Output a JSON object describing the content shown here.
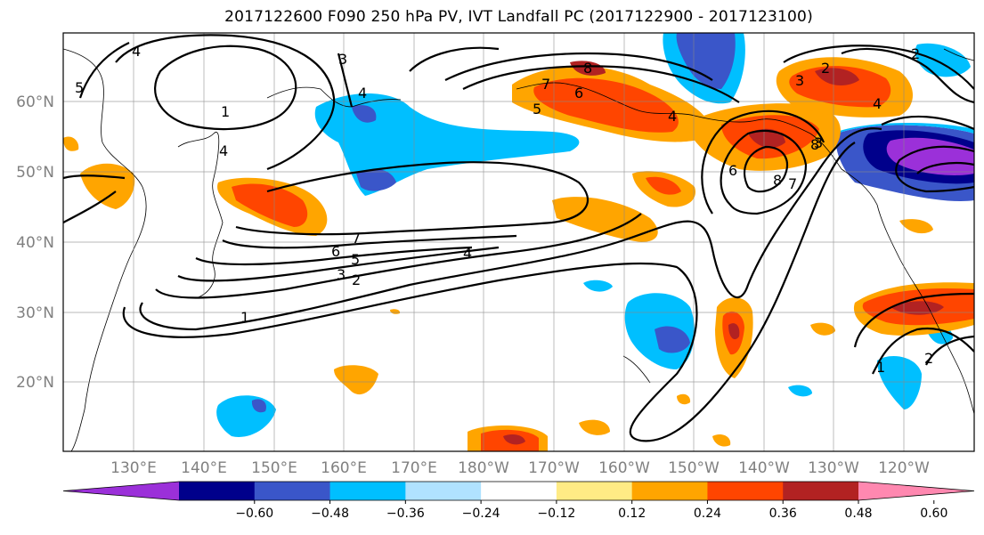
{
  "title": "2017122600 F090 250 hPa PV, IVT Landfall PC (2017122900 - 2017123100)",
  "latitude_labels": [
    "60°N",
    "50°N",
    "40°N",
    "30°N",
    "20°N"
  ],
  "longitude_labels": [
    "130°E",
    "140°E",
    "150°E",
    "160°E",
    "170°E",
    "180°W",
    "170°W",
    "160°W",
    "150°W",
    "140°W",
    "130°W",
    "120°W"
  ],
  "contour_labels": [
    "1",
    "2",
    "3",
    "4",
    "5",
    "6",
    "7",
    "8",
    "6",
    "8",
    "7",
    "5",
    "4",
    "3",
    "2",
    "4",
    "5",
    "6",
    "7",
    "8",
    "4",
    "3",
    "2",
    "1",
    "2",
    "3",
    "4",
    "4",
    "1",
    "2"
  ],
  "colorbar": {
    "tick_labels": [
      "-0.60",
      "-0.48",
      "-0.36",
      "-0.24",
      "-0.12",
      "0.12",
      "0.24",
      "0.36",
      "0.48",
      "0.60"
    ],
    "colors": [
      "#9b30d9",
      "#00008b",
      "#3a56c9",
      "#00bfff",
      "#b0e2ff",
      "#ffffff",
      "#ffeb85",
      "#ffa500",
      "#ff4500",
      "#b22222",
      "#ff88b0"
    ]
  }
}
